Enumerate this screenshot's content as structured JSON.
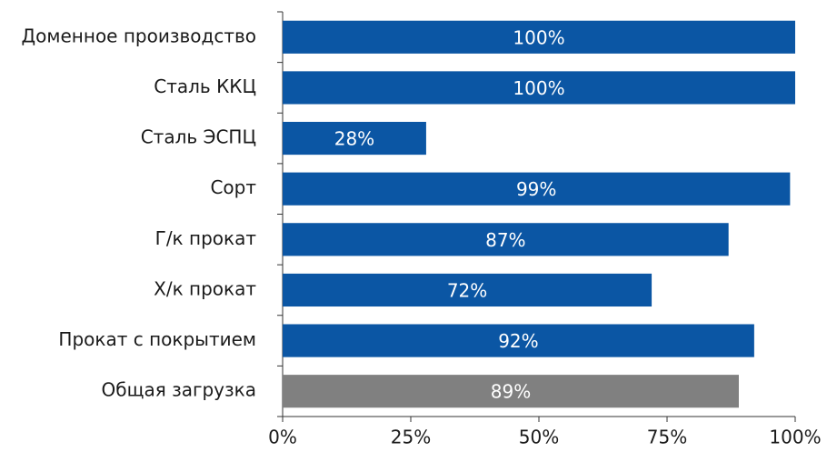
{
  "chart_data": {
    "type": "barh",
    "categories": [
      "Доменное производство",
      "Сталь ККЦ",
      "Сталь ЭСПЦ",
      "Сорт",
      "Г/к прокат",
      "Х/к прокат",
      "Прокат с покрытием",
      "Общая загрузка"
    ],
    "values": [
      100,
      100,
      28,
      99,
      87,
      72,
      92,
      89
    ],
    "value_labels": [
      "100%",
      "100%",
      "28%",
      "99%",
      "87%",
      "72%",
      "92%",
      "89%"
    ],
    "colors": [
      "#0b56a4",
      "#0b56a4",
      "#0b56a4",
      "#0b56a4",
      "#0b56a4",
      "#0b56a4",
      "#0b56a4",
      "#808080"
    ],
    "xlim": [
      0,
      100
    ],
    "xticks": [
      {
        "value": 0,
        "label": "0%"
      },
      {
        "value": 25,
        "label": "25%"
      },
      {
        "value": 50,
        "label": "50%"
      },
      {
        "value": 75,
        "label": "75%"
      },
      {
        "value": 100,
        "label": "100%"
      }
    ]
  }
}
